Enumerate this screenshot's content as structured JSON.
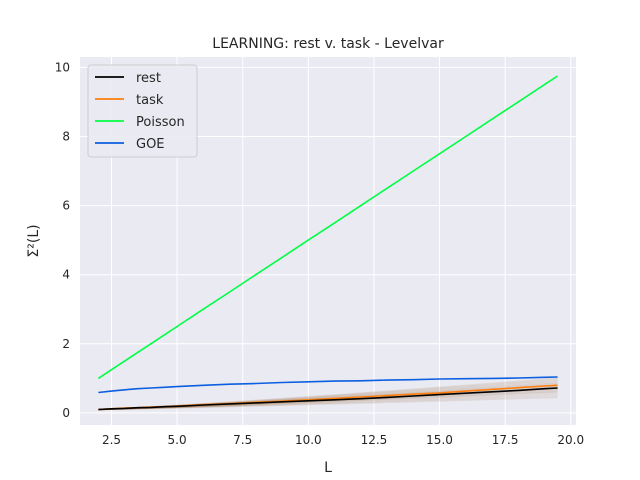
{
  "chart_data": {
    "type": "line",
    "title": "LEARNING: rest v. task - Levelvar",
    "xlabel": "L",
    "ylabel": "Σ²(L)",
    "xlim": [
      1.3,
      20.2
    ],
    "ylim": [
      -0.35,
      10.3
    ],
    "xticks": [
      2.5,
      5.0,
      7.5,
      10.0,
      12.5,
      15.0,
      17.5,
      20.0
    ],
    "xtick_labels": [
      "2.5",
      "5.0",
      "7.5",
      "10.0",
      "12.5",
      "15.0",
      "17.5",
      "20.0"
    ],
    "yticks": [
      0,
      2,
      4,
      6,
      8,
      10
    ],
    "ytick_labels": [
      "0",
      "2",
      "4",
      "6",
      "8",
      "10"
    ],
    "grid": true,
    "legend_position": "top-left",
    "x": [
      2.0,
      2.5,
      3.0,
      3.5,
      4.0,
      4.5,
      5.0,
      6.0,
      7.0,
      8.0,
      9.0,
      10.0,
      11.0,
      12.0,
      13.0,
      14.0,
      15.0,
      16.0,
      17.0,
      18.0,
      19.0,
      19.5
    ],
    "series": [
      {
        "name": "rest",
        "color": "#000000",
        "values": [
          0.1,
          0.12,
          0.13,
          0.15,
          0.16,
          0.18,
          0.19,
          0.23,
          0.26,
          0.29,
          0.32,
          0.35,
          0.38,
          0.41,
          0.45,
          0.49,
          0.53,
          0.57,
          0.61,
          0.65,
          0.7,
          0.72
        ]
      },
      {
        "name": "task",
        "color": "#ff7f0e",
        "values": [
          0.1,
          0.12,
          0.14,
          0.15,
          0.17,
          0.18,
          0.2,
          0.24,
          0.27,
          0.31,
          0.34,
          0.38,
          0.42,
          0.46,
          0.5,
          0.54,
          0.58,
          0.63,
          0.68,
          0.73,
          0.78,
          0.8
        ]
      },
      {
        "name": "Poisson",
        "color": "#00ff44",
        "values": [
          1.0,
          1.25,
          1.5,
          1.75,
          2.0,
          2.25,
          2.5,
          3.0,
          3.5,
          4.0,
          4.5,
          5.0,
          5.5,
          6.0,
          6.5,
          7.0,
          7.5,
          8.0,
          8.5,
          9.0,
          9.5,
          9.75
        ]
      },
      {
        "name": "GOE",
        "color": "#0b5fe0",
        "values": [
          0.59,
          0.63,
          0.67,
          0.7,
          0.72,
          0.74,
          0.76,
          0.8,
          0.83,
          0.85,
          0.88,
          0.9,
          0.92,
          0.93,
          0.95,
          0.96,
          0.98,
          0.99,
          1.0,
          1.01,
          1.03,
          1.04
        ]
      }
    ],
    "trial_curves": {
      "color": "#8a5a2b",
      "opacity": 0.12,
      "final_values": [
        0.45,
        0.5,
        0.55,
        0.6,
        0.62,
        0.65,
        0.68,
        0.7,
        0.72,
        0.75,
        0.78,
        0.8,
        0.82,
        0.85,
        0.88,
        0.92,
        0.96,
        1.0
      ]
    }
  }
}
